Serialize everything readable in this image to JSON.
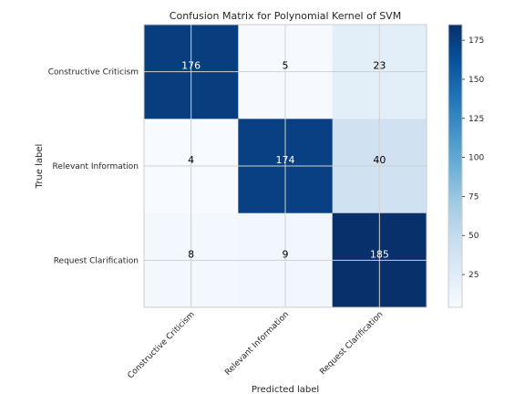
{
  "chart_data": {
    "type": "heatmap",
    "title": "Confusion Matrix for Polynomial Kernel of SVM",
    "xlabel": "Predicted label",
    "ylabel": "True label",
    "x_categories": [
      "Constructive Criticism",
      "Relevant Information",
      "Request Clarification"
    ],
    "y_categories": [
      "Constructive Criticism",
      "Relevant Information",
      "Request Clarification"
    ],
    "values": [
      [
        176,
        5,
        23
      ],
      [
        4,
        174,
        40
      ],
      [
        8,
        9,
        185
      ]
    ],
    "colorbar": {
      "min": 4,
      "max": 185,
      "ticks": [
        25,
        50,
        75,
        100,
        125,
        150,
        175
      ],
      "colormap": "Blues"
    },
    "grid": true
  }
}
